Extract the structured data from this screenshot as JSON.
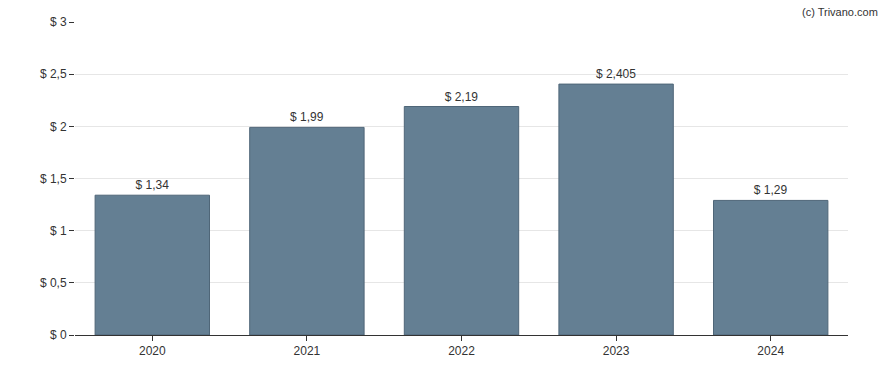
{
  "chart_data": {
    "type": "bar",
    "categories": [
      "2020",
      "2021",
      "2022",
      "2023",
      "2024"
    ],
    "values": [
      1.34,
      1.99,
      2.19,
      2.405,
      1.29
    ],
    "value_labels": [
      "$ 1,34",
      "$ 1,99",
      "$ 2,19",
      "$ 2,405",
      "$ 1,29"
    ],
    "data_labels": true,
    "color": "#647f93",
    "ylim": [
      0,
      3
    ],
    "yticks": [
      {
        "value": 0,
        "label": "$ 0"
      },
      {
        "value": 0.5,
        "label": "$ 0,5"
      },
      {
        "value": 1,
        "label": "$ 1"
      },
      {
        "value": 1.5,
        "label": "$ 1,5"
      },
      {
        "value": 2,
        "label": "$ 2"
      },
      {
        "value": 2.5,
        "label": "$ 2,5"
      },
      {
        "value": 3,
        "label": "$ 3"
      }
    ],
    "grid": true,
    "annotations": [
      "(c) Trivano.com"
    ]
  }
}
